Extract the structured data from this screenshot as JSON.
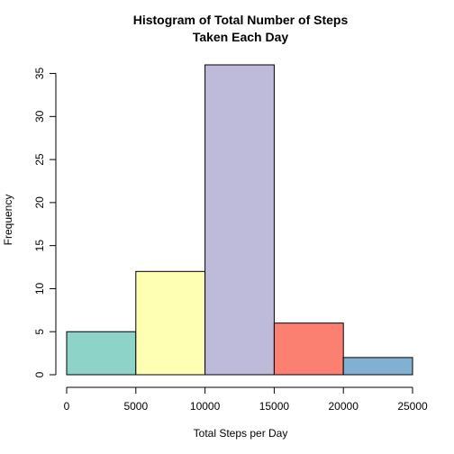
{
  "chart_data": {
    "type": "bar",
    "title_lines": [
      "Histogram of Total Number of Steps",
      "Taken Each Day"
    ],
    "xlabel": "Total Steps per Day",
    "ylabel": "Frequency",
    "bins": [
      {
        "from": 0,
        "to": 5000,
        "value": 5,
        "color": "#8DD3C7"
      },
      {
        "from": 5000,
        "to": 10000,
        "value": 12,
        "color": "#FFFFB3"
      },
      {
        "from": 10000,
        "to": 15000,
        "value": 36,
        "color": "#BEBADA"
      },
      {
        "from": 15000,
        "to": 20000,
        "value": 6,
        "color": "#FB8072"
      },
      {
        "from": 20000,
        "to": 25000,
        "value": 2,
        "color": "#80B1D3"
      }
    ],
    "xlim": [
      0,
      25000
    ],
    "ylim": [
      0,
      36
    ],
    "x_ticks": [
      0,
      5000,
      10000,
      15000,
      20000,
      25000
    ],
    "x_tick_labels": [
      "0",
      "5000",
      "10000",
      "15000",
      "20000",
      "25000"
    ],
    "y_ticks": [
      0,
      5,
      10,
      15,
      20,
      25,
      30,
      35
    ],
    "y_tick_labels": [
      "0",
      "5",
      "10",
      "15",
      "20",
      "25",
      "30",
      "35"
    ],
    "grid": false,
    "legend": "none"
  }
}
